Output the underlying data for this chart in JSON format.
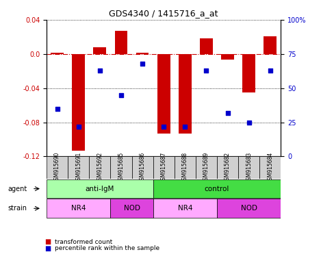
{
  "title": "GDS4340 / 1415716_a_at",
  "samples": [
    "GSM915690",
    "GSM915691",
    "GSM915692",
    "GSM915685",
    "GSM915686",
    "GSM915687",
    "GSM915688",
    "GSM915689",
    "GSM915682",
    "GSM915683",
    "GSM915684"
  ],
  "bar_values": [
    0.001,
    -0.113,
    0.008,
    0.027,
    0.001,
    -0.093,
    -0.093,
    0.018,
    -0.007,
    -0.045,
    0.021
  ],
  "percentile_values": [
    35,
    22,
    63,
    45,
    68,
    22,
    22,
    63,
    32,
    25,
    63
  ],
  "bar_color": "#cc0000",
  "dot_color": "#0000cc",
  "ylim_left": [
    -0.12,
    0.04
  ],
  "ylim_right": [
    0,
    100
  ],
  "yticks_left": [
    -0.12,
    -0.08,
    -0.04,
    0.0,
    0.04
  ],
  "yticks_right": [
    0,
    25,
    50,
    75,
    100
  ],
  "ytick_labels_right": [
    "0",
    "25",
    "50",
    "75",
    "100%"
  ],
  "agent_groups": [
    {
      "label": "anti-IgM",
      "start": 0,
      "end": 5,
      "color": "#aaffaa"
    },
    {
      "label": "control",
      "start": 5,
      "end": 11,
      "color": "#44dd44"
    }
  ],
  "strain_groups": [
    {
      "label": "NR4",
      "start": 0,
      "end": 3,
      "color": "#ffaaff"
    },
    {
      "label": "NOD",
      "start": 3,
      "end": 5,
      "color": "#dd44dd"
    },
    {
      "label": "NR4",
      "start": 5,
      "end": 8,
      "color": "#ffaaff"
    },
    {
      "label": "NOD",
      "start": 8,
      "end": 11,
      "color": "#dd44dd"
    }
  ],
  "legend_items": [
    {
      "label": "transformed count",
      "color": "#cc0000"
    },
    {
      "label": "percentile rank within the sample",
      "color": "#0000cc"
    }
  ],
  "agent_label": "agent",
  "strain_label": "strain",
  "xlabel_bg": "#d0d0d0"
}
